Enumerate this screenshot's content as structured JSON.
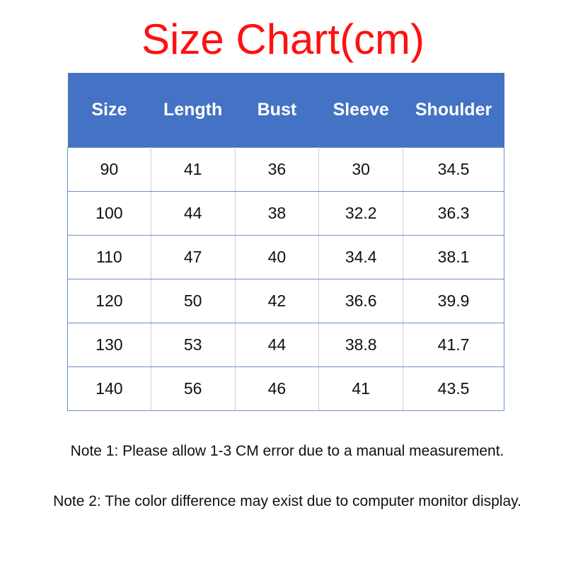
{
  "title": "Size Chart(cm)",
  "colors": {
    "title": "#ff1010",
    "header_bg": "#4472c4",
    "header_text": "#ffffff"
  },
  "table": {
    "headers": [
      "Size",
      "Length",
      "Bust",
      "Sleeve",
      "Shoulder"
    ],
    "rows": [
      [
        "90",
        "41",
        "36",
        "30",
        "34.5"
      ],
      [
        "100",
        "44",
        "38",
        "32.2",
        "36.3"
      ],
      [
        "110",
        "47",
        "40",
        "34.4",
        "38.1"
      ],
      [
        "120",
        "50",
        "42",
        "36.6",
        "39.9"
      ],
      [
        "130",
        "53",
        "44",
        "38.8",
        "41.7"
      ],
      [
        "140",
        "56",
        "46",
        "41",
        "43.5"
      ]
    ]
  },
  "notes": [
    "Note 1: Please allow 1-3 CM error due to a manual measurement.",
    "Note 2: The color difference may exist due to computer monitor display."
  ]
}
